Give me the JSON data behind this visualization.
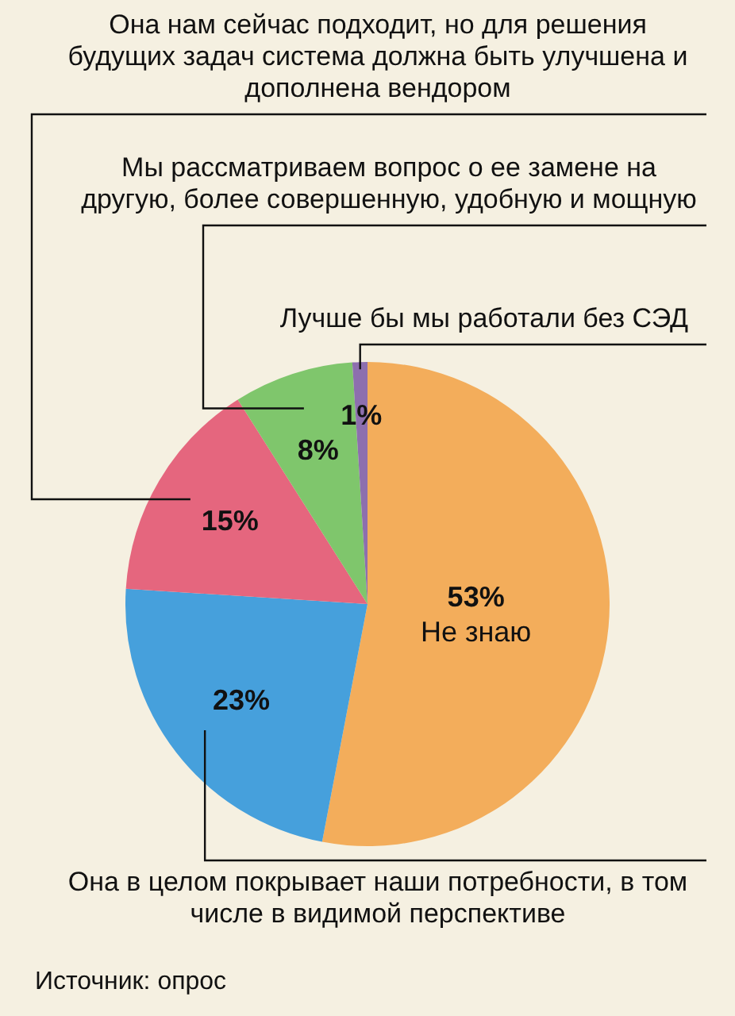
{
  "chart_data": {
    "type": "pie",
    "categories": [
      "Не знаю",
      "Она в целом покрывает наши потребности, в том числе в видимой перспективе",
      "Она нам сейчас подходит, но для решения будущих задач система должна быть улучшена и дополнена вендором",
      "Мы рассматриваем вопрос о ее замене на другую, более совершенную, удобную и мощную",
      "Лучше бы мы работали без СЭД"
    ],
    "values": [
      53,
      23,
      15,
      8,
      1
    ],
    "colors": [
      "#f3ad5b",
      "#46a0dc",
      "#e5667e",
      "#7fc66c",
      "#8d6fae"
    ],
    "value_labels": [
      "53%",
      "23%",
      "15%",
      "8%",
      "1%"
    ],
    "legend": false,
    "annotations": [
      "Источник: опрос"
    ]
  }
}
